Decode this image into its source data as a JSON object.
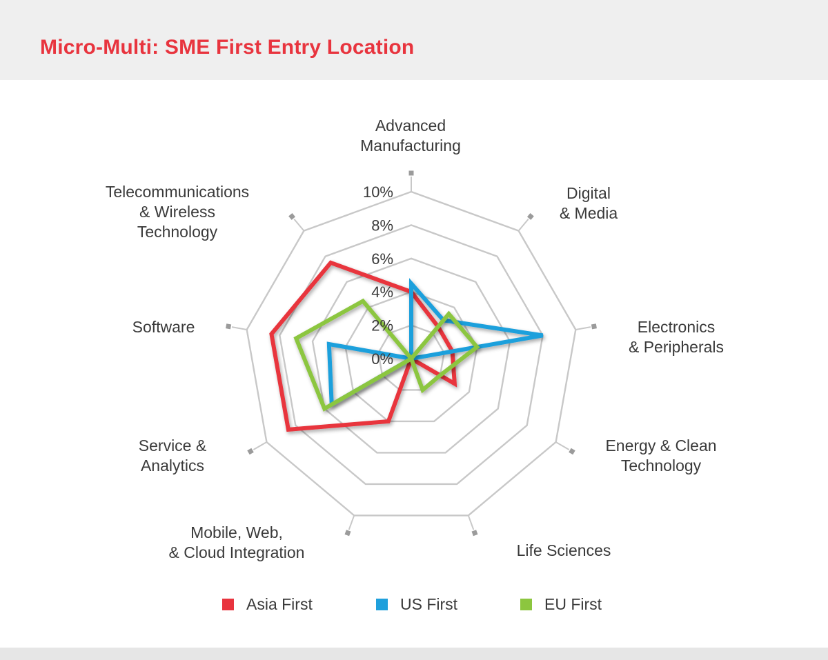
{
  "title": "Micro-Multi: SME First Entry Location",
  "chart_data": {
    "type": "radar",
    "title": "Micro-Multi: SME First Entry Location",
    "categories": [
      "Advanced Manufacturing",
      "Digital & Media",
      "Electronics & Peripherals",
      "Energy & Clean Technology",
      "Life Sciences",
      "Mobile, Web, & Cloud Integration",
      "Service & Analytics",
      "Software",
      "Telecommunications & Wireless Technology"
    ],
    "category_lines": [
      [
        "Advanced",
        "Manufacturing"
      ],
      [
        "Digital",
        "& Media"
      ],
      [
        "Electronics",
        "& Peripherals"
      ],
      [
        "Energy & Clean",
        "Technology"
      ],
      [
        "Life Sciences"
      ],
      [
        "Mobile, Web,",
        "& Cloud Integration"
      ],
      [
        "Service &",
        "Analytics"
      ],
      [
        "Software"
      ],
      [
        "Telecommunications",
        "& Wireless",
        "Technology"
      ]
    ],
    "r_ticks": [
      "0%",
      "2%",
      "4%",
      "6%",
      "8%",
      "10%"
    ],
    "r_range": [
      0,
      10
    ],
    "r_unit": "%",
    "series": [
      {
        "name": "Asia First",
        "color": "#e8343e",
        "values": [
          4.0,
          2.5,
          2.5,
          3.0,
          0.0,
          4.0,
          8.5,
          8.5,
          7.5
        ]
      },
      {
        "name": "US First",
        "color": "#1fa0dc",
        "values": [
          4.5,
          3.0,
          8.0,
          0.0,
          0.0,
          0.0,
          5.5,
          5.0,
          0.0
        ]
      },
      {
        "name": "EU First",
        "color": "#8cc63f",
        "values": [
          0.0,
          3.5,
          4.0,
          2.0,
          2.0,
          0.0,
          6.0,
          7.0,
          4.5
        ]
      }
    ],
    "grid": true,
    "legend_position": "bottom"
  }
}
